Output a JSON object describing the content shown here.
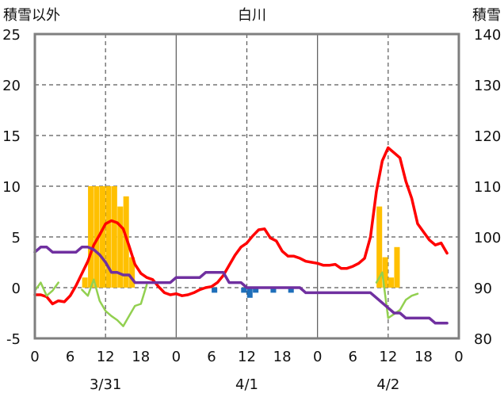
{
  "chart_data": {
    "type": "line",
    "title": "白川",
    "ylabel_left": "積雪以外",
    "ylabel_right": "積雪",
    "ylim_left": [
      -5,
      25
    ],
    "ylim_right": [
      80,
      140
    ],
    "yticks_left": [
      "25",
      "20",
      "15",
      "10",
      "5",
      "0",
      "-5"
    ],
    "yticks_right": [
      "140",
      "130",
      "120",
      "110",
      "100",
      "90",
      "80"
    ],
    "xlim": [
      0,
      72
    ],
    "x_tick_labels": [
      "0",
      "6",
      "12",
      "18",
      "0",
      "6",
      "12",
      "18",
      "0",
      "6",
      "12",
      "18",
      "0"
    ],
    "day_labels": [
      "3/31",
      "4/1",
      "4/2"
    ],
    "grid": true,
    "series": [
      {
        "kind": "bar",
        "axis": "left",
        "color": "#ffc000",
        "points": [
          [
            8,
            1
          ],
          [
            9,
            10
          ],
          [
            10,
            10
          ],
          [
            11,
            10
          ],
          [
            12,
            10
          ],
          [
            13,
            10
          ],
          [
            14,
            8
          ],
          [
            15,
            9
          ],
          [
            16,
            3
          ],
          [
            58,
            8
          ],
          [
            59,
            3
          ],
          [
            60,
            1
          ],
          [
            61,
            4
          ]
        ]
      },
      {
        "kind": "bar",
        "axis": "left",
        "color": "#1f6fba",
        "points": [
          [
            30,
            -0.5
          ],
          [
            35,
            -0.5
          ],
          [
            36,
            -1
          ],
          [
            37,
            -0.5
          ],
          [
            40,
            -0.5
          ],
          [
            43,
            -0.5
          ]
        ]
      },
      {
        "kind": "line",
        "axis": "left",
        "color": "#ff0000",
        "points": [
          [
            0,
            -0.7
          ],
          [
            1,
            -0.7
          ],
          [
            2,
            -0.9
          ],
          [
            3,
            -1.6
          ],
          [
            4,
            -1.3
          ],
          [
            5,
            -1.4
          ],
          [
            6,
            -0.8
          ],
          [
            7,
            0.2
          ],
          [
            8,
            1.4
          ],
          [
            9,
            2.6
          ],
          [
            10,
            4.2
          ],
          [
            11,
            5.2
          ],
          [
            12,
            6.3
          ],
          [
            13,
            6.6
          ],
          [
            14,
            6.4
          ],
          [
            15,
            5.8
          ],
          [
            16,
            4.1
          ],
          [
            17,
            2.3
          ],
          [
            18,
            1.4
          ],
          [
            19,
            1.0
          ],
          [
            20,
            0.8
          ],
          [
            21,
            0.1
          ],
          [
            22,
            -0.5
          ],
          [
            23,
            -0.7
          ],
          [
            24,
            -0.6
          ],
          [
            25,
            -0.8
          ],
          [
            26,
            -0.7
          ],
          [
            27,
            -0.5
          ],
          [
            28,
            -0.2
          ],
          [
            29,
            0.0
          ],
          [
            30,
            0.1
          ],
          [
            31,
            0.5
          ],
          [
            32,
            1.2
          ],
          [
            33,
            2.2
          ],
          [
            34,
            3.2
          ],
          [
            35,
            4.0
          ],
          [
            36,
            4.4
          ],
          [
            37,
            5.1
          ],
          [
            38,
            5.7
          ],
          [
            39,
            5.8
          ],
          [
            40,
            4.9
          ],
          [
            41,
            4.6
          ],
          [
            42,
            3.6
          ],
          [
            43,
            3.1
          ],
          [
            44,
            3.1
          ],
          [
            45,
            2.9
          ],
          [
            46,
            2.6
          ],
          [
            47,
            2.5
          ],
          [
            48,
            2.4
          ],
          [
            49,
            2.2
          ],
          [
            50,
            2.2
          ],
          [
            51,
            2.3
          ],
          [
            52,
            1.9
          ],
          [
            53,
            1.9
          ],
          [
            54,
            2.1
          ],
          [
            55,
            2.4
          ],
          [
            56,
            2.9
          ],
          [
            57,
            5.0
          ],
          [
            58,
            9.5
          ],
          [
            59,
            12.5
          ],
          [
            60,
            13.8
          ],
          [
            61,
            13.3
          ],
          [
            62,
            12.8
          ],
          [
            63,
            10.5
          ],
          [
            64,
            8.8
          ],
          [
            65,
            6.3
          ],
          [
            66,
            5.5
          ],
          [
            67,
            4.7
          ],
          [
            68,
            4.2
          ],
          [
            69,
            4.4
          ],
          [
            70,
            3.4
          ]
        ]
      },
      {
        "kind": "line",
        "axis": "left",
        "color": "#92d050",
        "segments": [
          [
            [
              0,
              -0.3
            ],
            [
              1,
              0.5
            ],
            [
              2,
              -0.8
            ],
            [
              3,
              -0.3
            ],
            [
              4,
              0.5
            ]
          ],
          [
            [
              8,
              -0.2
            ],
            [
              9,
              -0.8
            ],
            [
              10,
              0.8
            ],
            [
              11,
              -1.3
            ],
            [
              12,
              -2.3
            ],
            [
              13,
              -2.8
            ],
            [
              14,
              -3.2
            ],
            [
              15,
              -3.8
            ],
            [
              16,
              -2.8
            ],
            [
              17,
              -1.8
            ],
            [
              18,
              -1.6
            ],
            [
              19,
              0.3
            ]
          ],
          [
            [
              58,
              0.5
            ],
            [
              59,
              1.5
            ],
            [
              60,
              -3.0
            ],
            [
              61,
              -2.6
            ],
            [
              62,
              -2.2
            ],
            [
              63,
              -1.2
            ],
            [
              64,
              -0.8
            ],
            [
              65,
              -0.6
            ]
          ]
        ]
      },
      {
        "kind": "line",
        "axis": "right",
        "color": "#7030a0",
        "points": [
          [
            0,
            97
          ],
          [
            1,
            98
          ],
          [
            2,
            98
          ],
          [
            3,
            97
          ],
          [
            4,
            97
          ],
          [
            5,
            97
          ],
          [
            6,
            97
          ],
          [
            7,
            97
          ],
          [
            8,
            98
          ],
          [
            9,
            98
          ],
          [
            10,
            97.5
          ],
          [
            11,
            96.5
          ],
          [
            12,
            95
          ],
          [
            13,
            93
          ],
          [
            14,
            93
          ],
          [
            15,
            92.5
          ],
          [
            16,
            92.5
          ],
          [
            17,
            91
          ],
          [
            18,
            91
          ],
          [
            19,
            91
          ],
          [
            20,
            91
          ],
          [
            21,
            91
          ],
          [
            22,
            91
          ],
          [
            23,
            91
          ],
          [
            24,
            92
          ],
          [
            25,
            92
          ],
          [
            26,
            92
          ],
          [
            27,
            92
          ],
          [
            28,
            92
          ],
          [
            29,
            93
          ],
          [
            30,
            93
          ],
          [
            31,
            93
          ],
          [
            32,
            93
          ],
          [
            33,
            91
          ],
          [
            34,
            91
          ],
          [
            35,
            91
          ],
          [
            36,
            90
          ],
          [
            37,
            90
          ],
          [
            38,
            90
          ],
          [
            39,
            90
          ],
          [
            40,
            90
          ],
          [
            41,
            90
          ],
          [
            42,
            90
          ],
          [
            43,
            90
          ],
          [
            44,
            90
          ],
          [
            45,
            90
          ],
          [
            46,
            89
          ],
          [
            47,
            89
          ],
          [
            48,
            89
          ],
          [
            49,
            89
          ],
          [
            50,
            89
          ],
          [
            51,
            89
          ],
          [
            52,
            89
          ],
          [
            53,
            89
          ],
          [
            54,
            89
          ],
          [
            55,
            89
          ],
          [
            56,
            89
          ],
          [
            57,
            89
          ],
          [
            58,
            88
          ],
          [
            59,
            87
          ],
          [
            60,
            86
          ],
          [
            61,
            85
          ],
          [
            62,
            85
          ],
          [
            63,
            84
          ],
          [
            64,
            84
          ],
          [
            65,
            84
          ],
          [
            66,
            84
          ],
          [
            67,
            84
          ],
          [
            68,
            83
          ],
          [
            69,
            83
          ],
          [
            70,
            83
          ]
        ]
      }
    ]
  }
}
